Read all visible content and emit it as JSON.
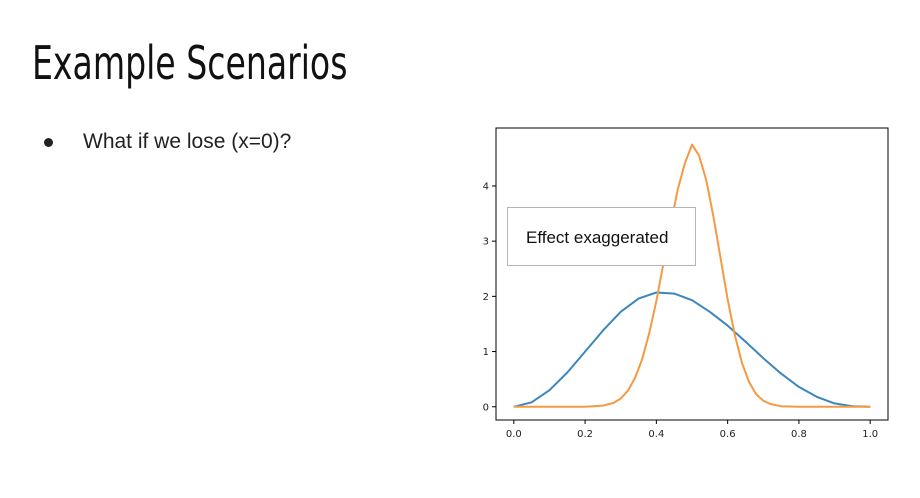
{
  "slide": {
    "title": "Example Scenarios",
    "bullets": [
      "What if we lose (x=0)?"
    ]
  },
  "chart_data": {
    "type": "line",
    "title": "",
    "xlabel": "",
    "ylabel": "",
    "xlim": [
      -0.05,
      1.05
    ],
    "ylim": [
      -0.24,
      5.05
    ],
    "xticks": [
      0.0,
      0.2,
      0.4,
      0.6,
      0.8,
      1.0
    ],
    "xtick_labels": [
      "0.0",
      "0.2",
      "0.4",
      "0.6",
      "0.8",
      "1.0"
    ],
    "yticks": [
      0,
      1,
      2,
      3,
      4
    ],
    "ytick_labels": [
      "0",
      "1",
      "2",
      "3",
      "4"
    ],
    "grid": false,
    "annotation": "Effect exaggerated",
    "series": [
      {
        "color": "#3b87bd",
        "x": [
          0.0,
          0.05,
          0.1,
          0.15,
          0.2,
          0.25,
          0.3,
          0.35,
          0.4,
          0.45,
          0.5,
          0.55,
          0.6,
          0.65,
          0.7,
          0.75,
          0.8,
          0.85,
          0.9,
          0.95,
          1.0
        ],
        "y": [
          0.0,
          0.08,
          0.3,
          0.62,
          1.0,
          1.38,
          1.72,
          1.96,
          2.07,
          2.05,
          1.93,
          1.72,
          1.47,
          1.18,
          0.88,
          0.6,
          0.36,
          0.18,
          0.06,
          0.01,
          0.0
        ]
      },
      {
        "color": "#f59a44",
        "x": [
          0.0,
          0.05,
          0.1,
          0.15,
          0.2,
          0.25,
          0.28,
          0.3,
          0.32,
          0.34,
          0.36,
          0.38,
          0.4,
          0.42,
          0.44,
          0.46,
          0.48,
          0.5,
          0.52,
          0.54,
          0.56,
          0.58,
          0.6,
          0.62,
          0.64,
          0.66,
          0.68,
          0.7,
          0.72,
          0.75,
          0.8,
          0.85,
          0.9,
          0.95,
          1.0
        ],
        "y": [
          0.0,
          0.0,
          0.0,
          0.0,
          0.0,
          0.02,
          0.07,
          0.15,
          0.29,
          0.52,
          0.86,
          1.33,
          1.92,
          2.6,
          3.3,
          3.93,
          4.41,
          4.75,
          4.55,
          4.1,
          3.45,
          2.7,
          1.95,
          1.3,
          0.8,
          0.45,
          0.23,
          0.11,
          0.05,
          0.01,
          0.0,
          0.0,
          0.0,
          0.0,
          0.0
        ]
      }
    ]
  }
}
